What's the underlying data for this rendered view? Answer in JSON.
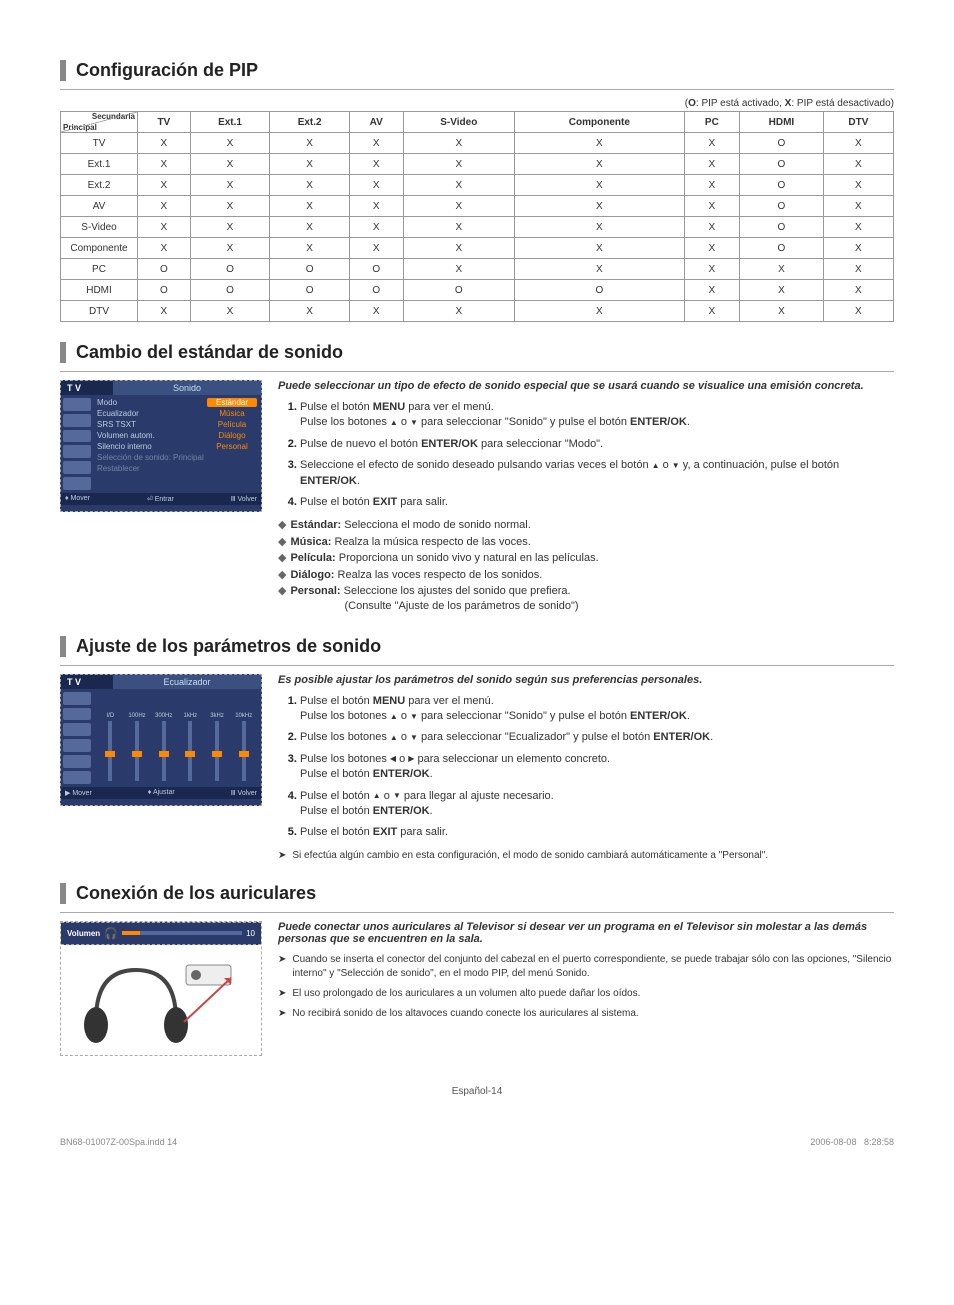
{
  "pip": {
    "title": "Configuración de PIP",
    "legend_prefix": "(",
    "legend_o": "O",
    "legend_o_txt": ": PIP está activado, ",
    "legend_x": "X",
    "legend_x_txt": ": PIP está desactivado)",
    "corner_top": "Secundaria",
    "corner_bot": "Principal",
    "cols": [
      "TV",
      "Ext.1",
      "Ext.2",
      "AV",
      "S-Video",
      "Componente",
      "PC",
      "HDMI",
      "DTV"
    ],
    "rows": [
      {
        "h": "TV",
        "c": [
          "X",
          "X",
          "X",
          "X",
          "X",
          "X",
          "X",
          "O",
          "X"
        ]
      },
      {
        "h": "Ext.1",
        "c": [
          "X",
          "X",
          "X",
          "X",
          "X",
          "X",
          "X",
          "O",
          "X"
        ]
      },
      {
        "h": "Ext.2",
        "c": [
          "X",
          "X",
          "X",
          "X",
          "X",
          "X",
          "X",
          "O",
          "X"
        ]
      },
      {
        "h": "AV",
        "c": [
          "X",
          "X",
          "X",
          "X",
          "X",
          "X",
          "X",
          "O",
          "X"
        ]
      },
      {
        "h": "S-Video",
        "c": [
          "X",
          "X",
          "X",
          "X",
          "X",
          "X",
          "X",
          "O",
          "X"
        ]
      },
      {
        "h": "Componente",
        "c": [
          "X",
          "X",
          "X",
          "X",
          "X",
          "X",
          "X",
          "O",
          "X"
        ]
      },
      {
        "h": "PC",
        "c": [
          "O",
          "O",
          "O",
          "O",
          "X",
          "X",
          "X",
          "X",
          "X"
        ]
      },
      {
        "h": "HDMI",
        "c": [
          "O",
          "O",
          "O",
          "O",
          "O",
          "O",
          "X",
          "X",
          "X"
        ]
      },
      {
        "h": "DTV",
        "c": [
          "X",
          "X",
          "X",
          "X",
          "X",
          "X",
          "X",
          "X",
          "X"
        ]
      }
    ]
  },
  "sound_std": {
    "title": "Cambio del estándar de sonido",
    "menu": {
      "header_label": "T V",
      "header_title": "Sonido",
      "rows": [
        {
          "k": "Modo",
          "v": "Estándar",
          "sel": true
        },
        {
          "k": "Ecualizador",
          "v": "Música"
        },
        {
          "k": "SRS TSXT",
          "v": "Película"
        },
        {
          "k": "Volumen autom.",
          "v": "Diálogo"
        },
        {
          "k": "Silencio interno",
          "v": "Personal"
        },
        {
          "k": "Selección de sonido: Principal",
          "v": "",
          "dim": true
        },
        {
          "k": "Restablecer",
          "v": "",
          "dim": true
        }
      ],
      "footer": {
        "a": "Mover",
        "b": "Entrar",
        "c": "Volver"
      }
    },
    "intro": "Puede seleccionar un tipo de efecto de sonido especial que se usará cuando se visualice una emisión concreta.",
    "steps": [
      "Pulse el botón <b>MENU</b> para ver el menú.<br>Pulse los botones <span class='tri'>▲</span> o <span class='tri'>▼</span> para seleccionar \"Sonido\" y pulse el botón <b>ENTER/OK</b>.",
      "Pulse de nuevo el botón <b>ENTER/OK</b> para seleccionar \"Modo\".",
      "Seleccione el efecto de sonido deseado pulsando varias veces el botón <span class='tri'>▲</span> o <span class='tri'>▼</span> y, a continuación, pulse el botón <b>ENTER/OK</b>.",
      "Pulse el botón <b>EXIT</b> para salir."
    ],
    "bullets": [
      {
        "b": "Estándar:",
        "t": "Selecciona el modo de sonido normal."
      },
      {
        "b": "Música:",
        "t": "Realza la música respecto de las voces."
      },
      {
        "b": "Película:",
        "t": "Proporciona un sonido vivo y natural en las películas."
      },
      {
        "b": "Diálogo:",
        "t": "Realza las voces respecto de los sonidos."
      },
      {
        "b": "Personal:",
        "t": "Seleccione los ajustes del sonido que prefiera.<br><span style='padding-left:54px'>(Consulte \"Ajuste de los parámetros de sonido\")</span>"
      }
    ]
  },
  "eq": {
    "title": "Ajuste de los parámetros de sonido",
    "menu": {
      "header_label": "T V",
      "header_title": "Ecualizador",
      "bands": [
        "I/D",
        "100Hz",
        "300Hz",
        "1kHz",
        "3kHz",
        "10kHz"
      ],
      "positions": [
        30,
        30,
        30,
        30,
        30,
        30
      ],
      "footer": {
        "a": "Mover",
        "b": "Ajustar",
        "c": "Volver"
      }
    },
    "intro": "Es posible ajustar los parámetros del sonido según sus preferencias personales.",
    "steps": [
      "Pulse el botón <b>MENU</b> para ver el menú.<br>Pulse los botones <span class='tri'>▲</span> o <span class='tri'>▼</span> para seleccionar \"Sonido\" y pulse el botón <b>ENTER/OK</b>.",
      "Pulse los botones <span class='tri'>▲</span> o <span class='tri'>▼</span> para seleccionar \"Ecualizador\" y pulse el botón <b>ENTER/OK</b>.",
      "Pulse los botones <span class='tri'>◀</span> o <span class='tri'>▶</span> para seleccionar un elemento concreto.<br>Pulse el botón <b>ENTER/OK</b>.",
      "Pulse el botón <span class='tri'>▲</span> o <span class='tri'>▼</span> para llegar al ajuste necesario.<br>Pulse el botón <b>ENTER/OK</b>.",
      "Pulse el botón <b>EXIT</b> para salir."
    ],
    "note": "Si efectúa algún cambio en esta configuración, el modo de sonido cambiará automáticamente a \"Personal\"."
  },
  "hp": {
    "title": "Conexión de los auriculares",
    "vol_label": "Volumen",
    "vol_value": "10",
    "intro": "Puede conectar unos auriculares al Televisor si desear ver un programa en el Televisor sin molestar a las demás personas que se encuentren en la sala.",
    "notes": [
      "Cuando se inserta el conector del conjunto del cabezal en el puerto correspondiente, se puede trabajar sólo con las opciones, \"Silencio interno\" y \"Selección de sonido\", en el modo PIP, del menú Sonido.",
      "El uso prolongado de los auriculares a un volumen alto puede dañar los oídos.",
      "No recibirá sonido de los altavoces cuando conecte los auriculares al sistema."
    ]
  },
  "footer": {
    "page": "Español-14",
    "file": "BN68-01007Z-00Spa.indd   14",
    "date": "2006-08-08",
    "time": "8:28:58"
  }
}
